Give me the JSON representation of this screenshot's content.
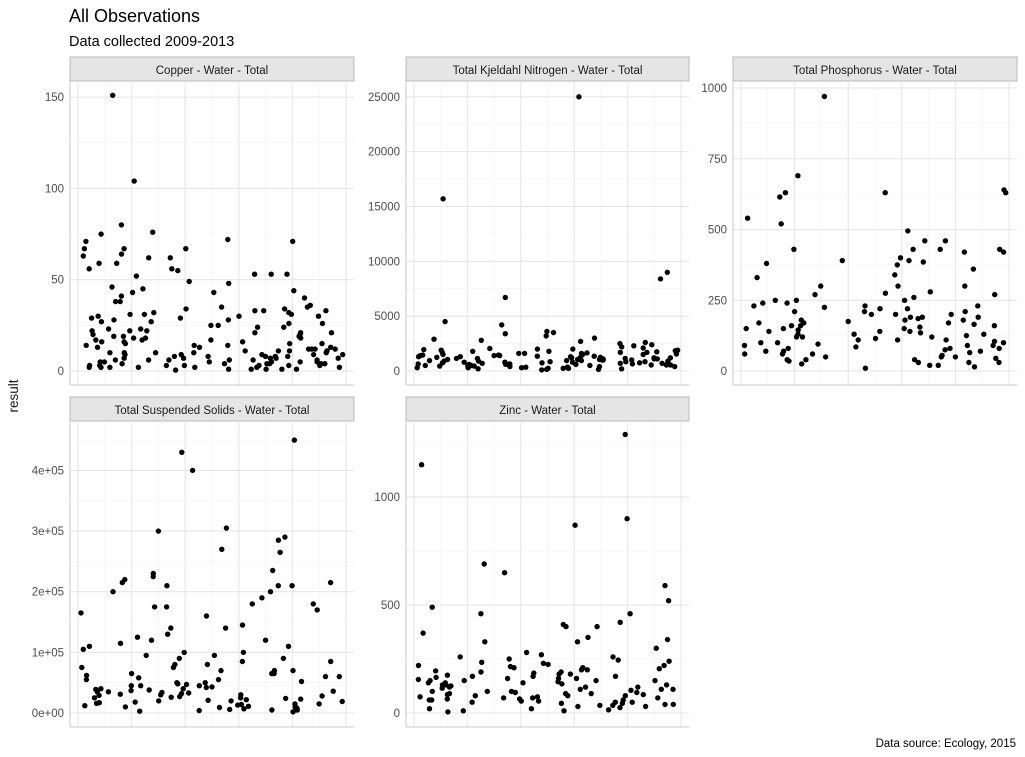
{
  "title": "All Observations",
  "subtitle": "Data collected 2009-2013",
  "caption": "Data source: Ecology, 2015",
  "chart_data": {
    "type": "scatter",
    "title": "All Observations",
    "subtitle": "Data collected 2009-2013",
    "ylabel": "result",
    "xlabel": "",
    "caption": "Data source: Ecology, 2015",
    "grid": true,
    "point_color": "#000000",
    "facets": [
      {
        "name": "Copper - Water - Total",
        "ylim": [
          0,
          155
        ],
        "yticks": [
          0,
          50,
          100,
          150
        ],
        "ytick_labels": [
          "0",
          "50",
          "100",
          "150"
        ],
        "y": [
          76,
          75,
          45,
          62,
          56,
          38,
          41,
          43,
          40,
          80,
          71,
          67,
          55,
          52,
          64,
          53,
          48,
          53,
          56,
          53,
          72,
          59,
          49,
          104,
          67,
          151,
          46,
          71,
          63,
          67,
          62,
          59,
          44,
          43,
          35,
          38,
          33,
          30,
          28,
          34,
          32,
          29,
          36,
          31,
          33,
          27,
          30,
          34,
          31,
          35,
          26,
          28,
          32,
          27,
          33,
          25,
          29,
          31,
          24,
          30,
          26,
          22,
          23,
          25,
          21,
          19,
          24,
          20,
          22,
          18,
          23,
          21,
          17,
          20,
          22,
          19,
          16,
          18,
          21,
          17,
          15,
          19,
          16,
          14,
          18,
          15,
          13,
          17,
          14,
          16,
          12,
          15,
          13,
          11,
          14,
          12,
          10,
          13,
          11,
          12,
          9,
          11,
          10,
          8,
          12,
          9,
          10,
          7,
          9,
          11,
          8,
          10,
          6,
          9,
          7,
          8,
          10,
          6,
          7,
          9,
          5,
          8,
          6,
          7,
          5,
          6,
          8,
          4,
          6,
          5,
          7,
          4,
          5,
          3,
          6,
          4,
          5,
          3,
          4,
          2,
          5,
          3,
          4,
          2,
          3,
          1,
          4,
          2,
          3,
          1,
          2,
          0.5,
          3,
          2,
          1,
          2,
          1,
          3,
          2,
          1
        ]
      },
      {
        "name": "Total Kjeldahl Nitrogen - Water - Total",
        "ylim": [
          0,
          25800
        ],
        "yticks": [
          0,
          5000,
          10000,
          15000,
          20000,
          25000
        ],
        "ytick_labels": [
          "0",
          "5000",
          "10000",
          "15000",
          "20000",
          "25000"
        ],
        "y": [
          4200,
          9000,
          8400,
          4500,
          6700,
          15700,
          25000,
          3500,
          3200,
          3000,
          2800,
          2600,
          3400,
          2400,
          2900,
          2200,
          2700,
          2500,
          2000,
          2300,
          1900,
          2100,
          1800,
          2000,
          1700,
          1900,
          1600,
          1800,
          1500,
          1700,
          1400,
          1600,
          1300,
          1500,
          1200,
          1400,
          1100,
          1300,
          1000,
          1200,
          900,
          1100,
          800,
          1000,
          700,
          900,
          600,
          800,
          500,
          700,
          400,
          600,
          300,
          500,
          200,
          400,
          100,
          300,
          150,
          250,
          1350,
          1150,
          950,
          850,
          750,
          650,
          550,
          450,
          350,
          1250,
          1050,
          1450,
          1650,
          1550,
          1750,
          1850,
          1950,
          2050,
          1250,
          1050,
          950,
          850,
          750,
          650,
          550,
          450,
          350,
          250,
          150,
          1100,
          900,
          700,
          500,
          300,
          1300,
          1500,
          1700,
          1200,
          1000,
          800,
          600,
          400,
          200,
          1400,
          1600,
          1150,
          950,
          750,
          550,
          350,
          1050,
          850,
          650,
          450,
          250,
          1250,
          1350,
          1150,
          1450,
          3600
        ]
      },
      {
        "name": "Total Phosphorus - Water - Total",
        "ylim": [
          0,
          1000
        ],
        "yticks": [
          0,
          250,
          500,
          750,
          1000
        ],
        "ytick_labels": [
          "0",
          "250",
          "500",
          "750",
          "1000"
        ],
        "y": [
          390,
          420,
          390,
          270,
          430,
          330,
          380,
          630,
          615,
          690,
          385,
          375,
          970,
          300,
          430,
          300,
          460,
          460,
          340,
          630,
          495,
          400,
          540,
          420,
          630,
          360,
          520,
          640,
          430,
          430,
          300,
          280,
          250,
          240,
          260,
          230,
          250,
          270,
          220,
          240,
          210,
          230,
          200,
          220,
          190,
          210,
          180,
          200,
          170,
          190,
          160,
          180,
          150,
          170,
          140,
          160,
          130,
          150,
          120,
          140,
          110,
          130,
          100,
          120,
          90,
          110,
          80,
          100,
          70,
          90,
          60,
          80,
          50,
          70,
          40,
          60,
          30,
          50,
          20,
          40,
          10,
          30,
          200,
          180,
          160,
          140,
          120,
          100,
          80,
          60,
          40,
          20,
          150,
          130,
          110,
          90,
          70,
          50,
          30,
          170,
          190,
          210,
          230,
          125,
          105,
          85,
          65,
          45,
          25,
          145,
          165,
          185,
          135,
          115,
          95,
          75,
          55,
          35,
          15,
          250,
          275,
          225,
          155,
          175
        ]
      },
      {
        "name": "Total Suspended Solids - Water - Total",
        "ylim": [
          0,
          470000
        ],
        "yticks": [
          0,
          100000,
          200000,
          300000,
          400000
        ],
        "ytick_labels": [
          "0e+00",
          "1e+05",
          "2e+05",
          "3e+05",
          "4e+05"
        ],
        "y": [
          400000,
          200000,
          175000,
          210000,
          215000,
          165000,
          140000,
          305000,
          290000,
          235000,
          200000,
          300000,
          230000,
          225000,
          180000,
          170000,
          285000,
          265000,
          190000,
          220000,
          215000,
          210000,
          450000,
          430000,
          270000,
          210000,
          180000,
          160000,
          175000,
          145000,
          120000,
          110000,
          100000,
          95000,
          120000,
          90000,
          130000,
          85000,
          125000,
          80000,
          115000,
          75000,
          110000,
          70000,
          105000,
          65000,
          100000,
          60000,
          95000,
          55000,
          90000,
          50000,
          85000,
          45000,
          80000,
          40000,
          75000,
          35000,
          70000,
          30000,
          65000,
          25000,
          60000,
          20000,
          55000,
          15000,
          50000,
          10000,
          45000,
          5000,
          40000,
          38000,
          36000,
          34000,
          32000,
          30000,
          28000,
          26000,
          24000,
          22000,
          20000,
          18000,
          16000,
          14000,
          12000,
          10000,
          8000,
          6000,
          4000,
          2000,
          48000,
          42000,
          37000,
          33000,
          27000,
          23000,
          17000,
          13000,
          7000,
          3000,
          62000,
          58000,
          52000,
          47000,
          43000,
          39000,
          31000,
          29000,
          21000,
          19000,
          11000,
          9000,
          140000,
          70000,
          35000,
          15000,
          25000,
          45000,
          65000,
          5000
        ]
      },
      {
        "name": "Zinc - Water - Total",
        "ylim": [
          0,
          1320
        ],
        "yticks": [
          0,
          500,
          1000
        ],
        "ytick_labels": [
          "0",
          "500",
          "1000"
        ],
        "y": [
          270,
          870,
          370,
          350,
          330,
          590,
          1150,
          400,
          280,
          690,
          410,
          220,
          460,
          520,
          1290,
          340,
          460,
          260,
          900,
          650,
          400,
          490,
          330,
          420,
          300,
          200,
          260,
          240,
          210,
          230,
          190,
          250,
          180,
          220,
          170,
          200,
          160,
          210,
          150,
          190,
          140,
          180,
          130,
          170,
          120,
          160,
          110,
          150,
          100,
          140,
          90,
          130,
          80,
          120,
          70,
          110,
          60,
          100,
          50,
          90,
          40,
          80,
          30,
          70,
          20,
          60,
          10,
          50,
          45,
          35,
          25,
          15,
          5,
          55,
          65,
          75,
          85,
          95,
          105,
          115,
          125,
          135,
          145,
          155,
          165,
          175,
          185,
          195,
          205,
          215,
          225,
          235,
          245,
          30,
          40,
          50,
          60,
          70,
          80,
          90,
          100,
          110,
          120,
          130,
          140,
          150,
          20,
          10,
          35,
          45,
          55,
          65,
          75,
          85,
          95,
          150,
          160,
          170
        ]
      }
    ]
  }
}
